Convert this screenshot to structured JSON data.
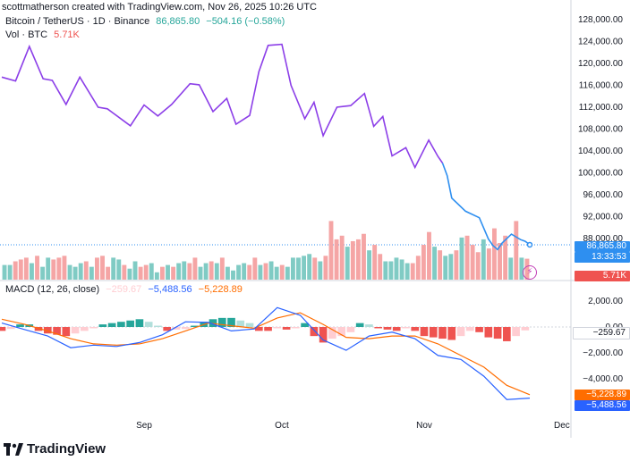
{
  "header": {
    "created_by": "scottmatherson created with TradingView.com, Nov 26, 2025 10:26 UTC",
    "symbol": "Bitcoin / TetherUS · 1D · Binance",
    "last_price": "86,865.80",
    "change": "−504.16 (−0.58%)",
    "vol_label": "Vol · BTC",
    "vol_value": "5.71K",
    "macd_label": "MACD (12, 26, close)",
    "macd_hist": "−259.67",
    "macd_line": "−5,488.56",
    "macd_signal": "−5,228.89"
  },
  "tags": {
    "price": "86,865.80",
    "countdown": "13:33:53",
    "vol": "5.71K",
    "hist": "−259.67",
    "signal": "−5,228.89",
    "macd": "−5,488.56"
  },
  "brand": "TradingView",
  "colors": {
    "price_line_old": "#8c3fe8",
    "price_line_new": "#2e8ff0",
    "vol_up": "#80cbc4",
    "vol_down": "#f5a5a5",
    "macd_line": "#2962ff",
    "signal_line": "#ff6d00",
    "hist_up_strong": "#26a69a",
    "hist_up_weak": "#b2dfdb",
    "hist_down_strong": "#ef5350",
    "hist_down_weak": "#ffcdd2"
  },
  "chart_data": [
    {
      "type": "line",
      "title": "Bitcoin / TetherUS · 1D · Binance",
      "y_ticks": [
        "128,000.00",
        "124,000.00",
        "120,000.00",
        "116,000.00",
        "112,000.00",
        "108,000.00",
        "104,000.00",
        "100,000.00",
        "96,000.00",
        "92,000.00",
        "88,000.00"
      ],
      "y_tick_values": [
        128000,
        124000,
        120000,
        116000,
        112000,
        108000,
        104000,
        100000,
        96000,
        92000,
        88000
      ],
      "x_ticks": [
        "Sep",
        "Oct",
        "Nov",
        "Dec"
      ],
      "x_tick_days": [
        31,
        61,
        92,
        122
      ],
      "ylim": [
        80000,
        130000
      ],
      "x_days": [
        0,
        3,
        6,
        9,
        11,
        14,
        17,
        21,
        23,
        28,
        31,
        34,
        37,
        41,
        43,
        46,
        49,
        51,
        54,
        56,
        58,
        61,
        63,
        66,
        68,
        70,
        73,
        76,
        79,
        81,
        83,
        85,
        88,
        90,
        93,
        95,
        96,
        97,
        98,
        101,
        104,
        106,
        107,
        108,
        109,
        111,
        113,
        114,
        115
      ],
      "price": [
        117500,
        116800,
        123100,
        117200,
        116900,
        112500,
        117500,
        112000,
        111700,
        108600,
        112400,
        110400,
        112500,
        116300,
        116100,
        111200,
        113600,
        108900,
        110500,
        118500,
        123300,
        123500,
        116000,
        109900,
        112900,
        106800,
        112000,
        112300,
        114500,
        108500,
        110300,
        103100,
        104600,
        101000,
        106000,
        103000,
        101800,
        99500,
        95400,
        93000,
        91800,
        87900,
        86700,
        86000,
        87200,
        88800,
        87800,
        87500,
        86865.8
      ],
      "color_change_at_day": 96
    },
    {
      "type": "bar",
      "title": "Vol · BTC",
      "last_value": "5.71K",
      "values_k": [
        4,
        4,
        5,
        5.5,
        6,
        4.5,
        6.5,
        3.5,
        6,
        5.5,
        6,
        6.5,
        4,
        3.5,
        4.5,
        5,
        3.5,
        6,
        6.5,
        3.5,
        6,
        5.5,
        4,
        3,
        5,
        3.5,
        4,
        4.5,
        2,
        3.5,
        4,
        3.5,
        4.5,
        5,
        4.5,
        6,
        3.5,
        4.5,
        5,
        4.5,
        6,
        3.5,
        2.5,
        4,
        4.5,
        4,
        6,
        4,
        4.5,
        5,
        3.5,
        4,
        3.5,
        6,
        6,
        6.5,
        7,
        6,
        5,
        6.5,
        16,
        11,
        12,
        9,
        10.5,
        11,
        12.5,
        8,
        9.5,
        7,
        5,
        5,
        6,
        5.5,
        4.5,
        4.5,
        6.5,
        9.5,
        13,
        9,
        8,
        6.5,
        7,
        8,
        11.5,
        12,
        9.5,
        7.5,
        11,
        8.5,
        14,
        10,
        12,
        6,
        16,
        6,
        5.71
      ],
      "up_flags": [
        1,
        1,
        0,
        0,
        0,
        1,
        0,
        1,
        1,
        0,
        0,
        0,
        1,
        1,
        1,
        0,
        1,
        0,
        0,
        0,
        1,
        1,
        0,
        1,
        1,
        0,
        0,
        1,
        1,
        0,
        1,
        0,
        1,
        1,
        0,
        0,
        1,
        1,
        0,
        1,
        0,
        1,
        1,
        1,
        1,
        0,
        0,
        1,
        0,
        1,
        1,
        0,
        1,
        1,
        1,
        1,
        1,
        0,
        1,
        0,
        0,
        0,
        0,
        1,
        0,
        0,
        0,
        1,
        0,
        0,
        1,
        1,
        1,
        1,
        1,
        0,
        0,
        0,
        0,
        1,
        0,
        1,
        1,
        0,
        1,
        0,
        0,
        0,
        1,
        0,
        0,
        0,
        0,
        1,
        0,
        1,
        0
      ]
    },
    {
      "type": "line",
      "title": "MACD (12, 26, close)",
      "y_ticks": [
        "2,000.00",
        "0.00",
        "−2,000.00",
        "−4,000.00"
      ],
      "y_tick_values": [
        2000,
        0,
        -2000,
        -4000
      ],
      "ylim": [
        -6200,
        3100
      ],
      "x_days": [
        0,
        5,
        10,
        15,
        20,
        25,
        30,
        35,
        40,
        45,
        50,
        55,
        60,
        65,
        70,
        75,
        80,
        85,
        90,
        95,
        100,
        105,
        110,
        115
      ],
      "macd": [
        300,
        -200,
        -700,
        -1600,
        -1400,
        -1500,
        -1200,
        -600,
        400,
        350,
        -300,
        -150,
        1500,
        900,
        -1000,
        -1800,
        -700,
        -400,
        -900,
        -2200,
        -2500,
        -3800,
        -5600,
        -5488.56
      ],
      "signal": [
        600,
        200,
        -300,
        -900,
        -1300,
        -1400,
        -1300,
        -900,
        -300,
        300,
        100,
        -100,
        700,
        1100,
        200,
        -800,
        -900,
        -700,
        -700,
        -1300,
        -2200,
        -3100,
        -4500,
        -5228.89
      ],
      "histogram_days": [
        0,
        2,
        4,
        6,
        8,
        10,
        12,
        14,
        16,
        18,
        20,
        22,
        24,
        26,
        28,
        30,
        32,
        34,
        36,
        38,
        40,
        42,
        44,
        46,
        48,
        50,
        52,
        54,
        56,
        58,
        60,
        62,
        64,
        66,
        68,
        70,
        72,
        74,
        76,
        78,
        80,
        82,
        84,
        86,
        88,
        90,
        92,
        94,
        96,
        98,
        100,
        102,
        104,
        106,
        108,
        110,
        112,
        114
      ],
      "histogram": [
        -300,
        -150,
        200,
        200,
        -300,
        -500,
        -600,
        -700,
        -500,
        -300,
        -100,
        200,
        300,
        400,
        500,
        600,
        400,
        100,
        -300,
        -200,
        -150,
        100,
        400,
        600,
        700,
        700,
        500,
        300,
        -300,
        -300,
        -100,
        -200,
        -100,
        300,
        -700,
        -1200,
        -900,
        -700,
        -400,
        300,
        200,
        -100,
        -200,
        -300,
        -100,
        -300,
        -700,
        -800,
        -900,
        -1000,
        -700,
        -300,
        -400,
        -800,
        -900,
        -1100,
        -700,
        -259.67
      ]
    }
  ]
}
